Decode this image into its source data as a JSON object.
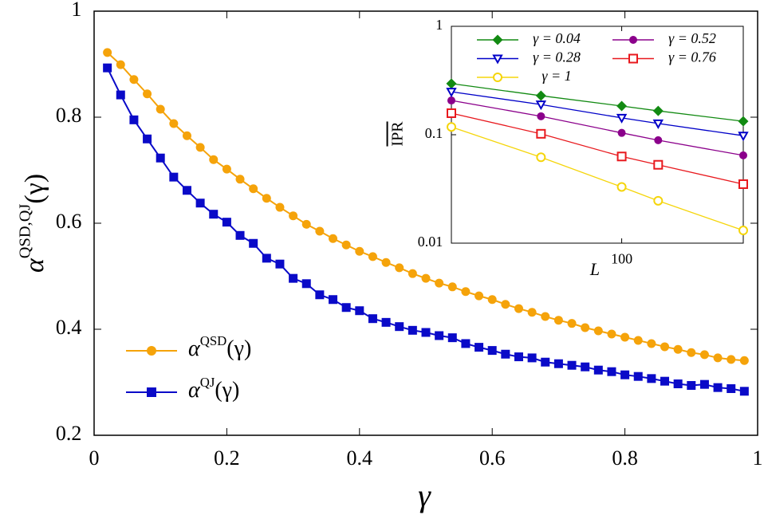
{
  "chart_data": [
    {
      "type": "line",
      "xlabel": "γ",
      "ylabel": [
        "α",
        "QSD,QJ",
        "(γ)"
      ],
      "xlim": [
        0,
        1
      ],
      "ylim": [
        0.2,
        1
      ],
      "xticks": [
        0,
        0.2,
        0.4,
        0.6,
        0.8,
        1
      ],
      "yticks": [
        0.2,
        0.4,
        0.6,
        0.8,
        1
      ],
      "legend": "lower left",
      "x": [
        0.02,
        0.04,
        0.06,
        0.08,
        0.1,
        0.12,
        0.14,
        0.16,
        0.18,
        0.2,
        0.22,
        0.24,
        0.26,
        0.28,
        0.3,
        0.32,
        0.34,
        0.36,
        0.38,
        0.4,
        0.42,
        0.44,
        0.46,
        0.48,
        0.5,
        0.52,
        0.54,
        0.56,
        0.58,
        0.6,
        0.62,
        0.64,
        0.66,
        0.68,
        0.7,
        0.72,
        0.74,
        0.76,
        0.78,
        0.8,
        0.82,
        0.84,
        0.86,
        0.88,
        0.9,
        0.92,
        0.94,
        0.96,
        0.98
      ],
      "series": [
        {
          "name": [
            "α",
            "QSD",
            "(γ)"
          ],
          "color": "#f5a30a",
          "marker": "circle",
          "values": [
            0.922,
            0.899,
            0.871,
            0.844,
            0.815,
            0.788,
            0.765,
            0.743,
            0.72,
            0.702,
            0.683,
            0.665,
            0.647,
            0.63,
            0.614,
            0.598,
            0.585,
            0.571,
            0.559,
            0.547,
            0.537,
            0.526,
            0.516,
            0.505,
            0.496,
            0.487,
            0.48,
            0.471,
            0.463,
            0.456,
            0.447,
            0.439,
            0.432,
            0.424,
            0.417,
            0.411,
            0.403,
            0.397,
            0.391,
            0.385,
            0.379,
            0.373,
            0.367,
            0.362,
            0.356,
            0.352,
            0.346,
            0.343,
            0.341
          ]
        },
        {
          "name": [
            "α",
            "QJ",
            "(γ)"
          ],
          "color": "#0a0ac8",
          "marker": "square",
          "values": [
            0.893,
            0.842,
            0.795,
            0.759,
            0.723,
            0.687,
            0.662,
            0.638,
            0.617,
            0.602,
            0.577,
            0.562,
            0.534,
            0.523,
            0.496,
            0.486,
            0.465,
            0.456,
            0.441,
            0.435,
            0.42,
            0.413,
            0.405,
            0.398,
            0.394,
            0.388,
            0.384,
            0.373,
            0.366,
            0.36,
            0.353,
            0.348,
            0.346,
            0.338,
            0.335,
            0.332,
            0.329,
            0.323,
            0.32,
            0.314,
            0.311,
            0.307,
            0.302,
            0.297,
            0.294,
            0.296,
            0.29,
            0.288,
            0.283
          ]
        }
      ]
    },
    {
      "type": "line",
      "xlabel": "L",
      "ylabel": "IPR",
      "xlog": true,
      "ylog": true,
      "xlim": [
        50,
        164
      ],
      "ylim": [
        0.01,
        1
      ],
      "xticks": [
        100
      ],
      "yticks": [
        0.01,
        0.1,
        1
      ],
      "legend": "upper right",
      "x": [
        50,
        72,
        100,
        116,
        164
      ],
      "series": [
        {
          "name": "γ = 0.04",
          "color": "#128a12",
          "marker": "diamond",
          "values": [
            0.296,
            0.229,
            0.184,
            0.166,
            0.133
          ]
        },
        {
          "name": "γ = 0.52",
          "color": "#8b008b",
          "marker": "circle",
          "values": [
            0.207,
            0.148,
            0.104,
            0.089,
            0.0645
          ]
        },
        {
          "name": "γ = 0.28",
          "color": "#0000c8",
          "marker": "triangle-open",
          "values": [
            0.249,
            0.19,
            0.143,
            0.127,
            0.098
          ]
        },
        {
          "name": "γ = 0.76",
          "color": "#e8191e",
          "marker": "square-open",
          "values": [
            0.158,
            0.102,
            0.063,
            0.0528,
            0.035
          ]
        },
        {
          "name": "γ = 1",
          "color": "#f5d50a",
          "marker": "circle-open",
          "values": [
            0.118,
            0.062,
            0.033,
            0.0246,
            0.0131
          ]
        }
      ]
    }
  ]
}
